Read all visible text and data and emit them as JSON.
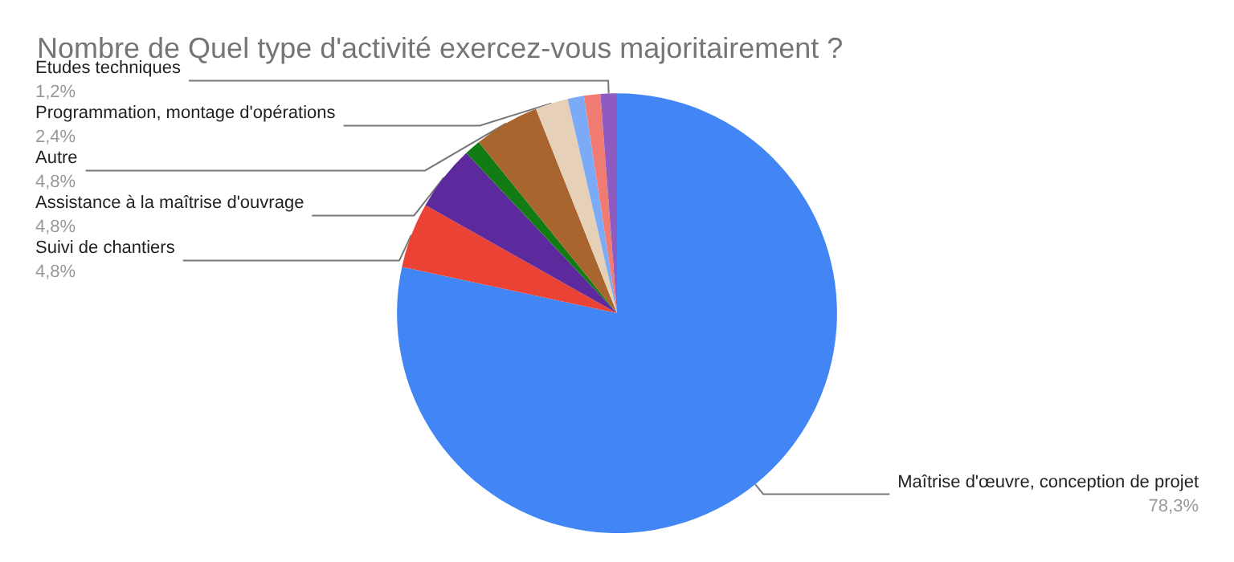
{
  "chart_data": {
    "type": "pie",
    "title": "Nombre de Quel type d'activité exercez-vous majoritairement ?",
    "categories": [
      "Maîtrise d'œuvre, conception de projet",
      "Suivi de chantiers",
      "Assistance à la maîtrise d'ouvrage",
      null,
      "Autre",
      "Programmation, montage d'opérations",
      null,
      null,
      "Etudes techniques"
    ],
    "values": [
      78.3,
      4.8,
      4.8,
      1.2,
      4.8,
      2.4,
      1.2,
      1.2,
      1.2
    ],
    "value_labels": [
      "78,3%",
      "4,8%",
      "4,8%",
      null,
      "4,8%",
      "2,4%",
      null,
      null,
      "1,2%"
    ],
    "colors": [
      "#4285f4",
      "#ea4335",
      "#5c2a9d",
      "#137b13",
      "#a9652e",
      "#e6d0b7",
      "#7baaf7",
      "#f07b72",
      "#8e5cc1"
    ],
    "legend": false
  }
}
